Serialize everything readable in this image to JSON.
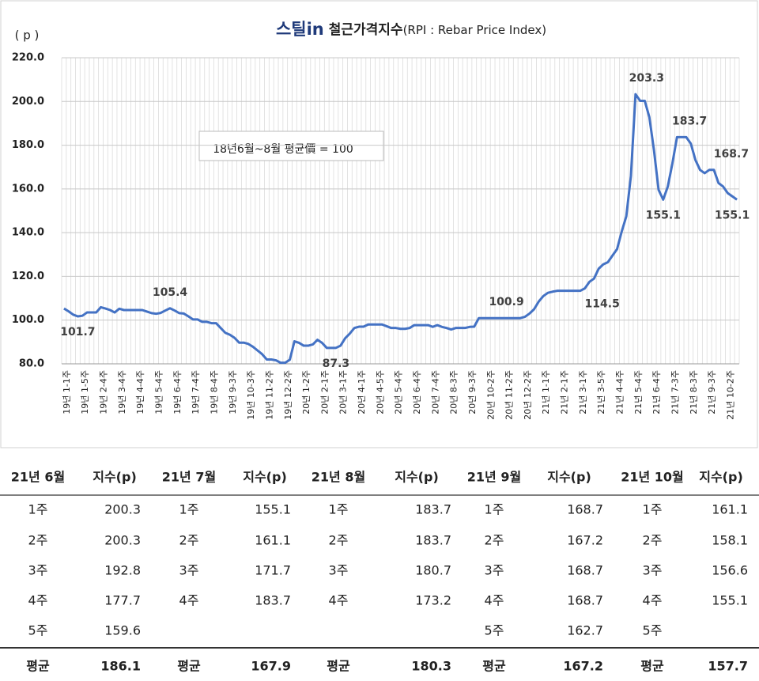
{
  "chart_data": {
    "type": "line",
    "logo": "스틸in",
    "title": "철근가격지수",
    "subtitle": "(RPI : Rebar Price Index)",
    "y_label": "( p )",
    "annotation": "18년6월~8월 평균價 = 100",
    "categories": [
      "19년 1-1주",
      null,
      null,
      null,
      "19년 1-5주",
      null,
      null,
      null,
      "19년 2-4주",
      null,
      null,
      null,
      "19년 3-4주",
      null,
      null,
      null,
      "19년 4-4주",
      null,
      null,
      null,
      "19년 5-4주",
      null,
      null,
      null,
      "19년 6-4주",
      null,
      null,
      null,
      "19년 7-4주",
      null,
      null,
      null,
      "19년 8-4주",
      null,
      null,
      null,
      "19년 9-3주",
      null,
      null,
      null,
      "19년 10-3주",
      null,
      null,
      null,
      "19년 11-2주",
      null,
      null,
      null,
      "19년 12-2주",
      null,
      null,
      null,
      "20년 1-2주",
      null,
      null,
      null,
      "20년 2-1주",
      null,
      null,
      null,
      "20년 3-1주",
      null,
      null,
      null,
      "20년 4-1주",
      null,
      null,
      null,
      "20년 4-5주",
      null,
      null,
      null,
      "20년 5-4주",
      null,
      null,
      null,
      "20년 6-4주",
      null,
      null,
      null,
      "20년 7-4주",
      null,
      null,
      null,
      "20년 8-3주",
      null,
      null,
      null,
      "20년 9-3주",
      null,
      null,
      null,
      "20년 10-2주",
      null,
      null,
      null,
      "20년 11-2주",
      null,
      null,
      null,
      "20년 12-2주",
      null,
      null,
      null,
      "21년 1-1주",
      null,
      null,
      null,
      "21년 2-1주",
      null,
      null,
      null,
      "21년 3-1주",
      null,
      null,
      null,
      "21년 3-5주",
      null,
      null,
      null,
      "21년 4-4주",
      null,
      null,
      null,
      "21년 5-4주",
      null,
      null,
      null,
      "21년 6-4주",
      null,
      null,
      null,
      "21년 7-3주",
      null,
      null,
      null,
      "21년 8-3주",
      null,
      null,
      null,
      "21년 9-3주",
      null,
      null,
      null,
      "21년 10-2주",
      null,
      null
    ],
    "series": [
      {
        "name": "철근가격지수",
        "color": "#4472c4",
        "values": [
          105.3,
          104,
          102.5,
          101.7,
          102,
          103.5,
          103.5,
          103.5,
          105.9,
          105.3,
          104.6,
          103.5,
          105.2,
          104.6,
          104.6,
          104.6,
          104.6,
          104.6,
          103.9,
          103.2,
          102.9,
          103.3,
          104.4,
          105.4,
          104.4,
          103.2,
          103,
          101.7,
          100.3,
          100.3,
          99.2,
          99.2,
          98.6,
          98.6,
          96.4,
          94.2,
          93.3,
          91.9,
          89.7,
          89.7,
          89.1,
          87.8,
          86.1,
          84.4,
          82,
          82,
          81.6,
          80.5,
          80.5,
          81.9,
          90.3,
          89.6,
          88.3,
          88.3,
          88.9,
          91,
          89.6,
          87.3,
          87.3,
          87.3,
          88.3,
          91.7,
          93.8,
          96.4,
          97,
          97,
          98,
          98,
          98,
          98,
          97.2,
          96.4,
          96.4,
          96,
          96,
          96.4,
          97.7,
          97.7,
          97.7,
          97.7,
          96.9,
          97.7,
          96.9,
          96.4,
          95.7,
          96.4,
          96.4,
          96.4,
          96.9,
          97,
          100.9,
          100.9,
          100.9,
          100.9,
          100.9,
          100.9,
          100.9,
          100.9,
          100.9,
          100.9,
          101.5,
          103,
          105,
          108.5,
          111,
          112.5,
          113,
          113.4,
          113.4,
          113.4,
          113.4,
          113.4,
          113.4,
          114.5,
          117.5,
          119,
          123.5,
          125.5,
          126.5,
          129.5,
          132.5,
          140.5,
          147.5,
          166,
          203.3,
          200.3,
          200.3,
          192.8,
          177.7,
          159.6,
          155.1,
          161.1,
          171.7,
          183.7,
          183.7,
          183.7,
          180.7,
          173.2,
          168.7,
          167.2,
          168.7,
          168.7,
          162.7,
          161.1,
          158.1,
          156.6,
          155.1
        ],
        "value_labels": [
          null,
          null,
          null,
          "101.7",
          null,
          null,
          null,
          null,
          null,
          null,
          null,
          null,
          null,
          null,
          null,
          null,
          null,
          null,
          null,
          null,
          null,
          null,
          null,
          "105.4",
          null,
          null,
          null,
          null,
          null,
          null,
          null,
          null,
          null,
          null,
          null,
          null,
          null,
          null,
          null,
          null,
          null,
          null,
          null,
          null,
          null,
          null,
          null,
          null,
          null,
          null,
          null,
          null,
          null,
          null,
          null,
          null,
          null,
          null,
          null,
          "87.3",
          null,
          null,
          null,
          null,
          null,
          null,
          null,
          null,
          null,
          null,
          null,
          null,
          null,
          null,
          null,
          null,
          null,
          null,
          null,
          null,
          null,
          null,
          null,
          null,
          null,
          null,
          null,
          null,
          null,
          null,
          null,
          null,
          null,
          null,
          null,
          null,
          "100.9",
          null,
          null,
          null,
          null,
          null,
          null,
          null,
          null,
          null,
          null,
          null,
          null,
          null,
          null,
          null,
          null,
          "114.5",
          null,
          null,
          null,
          null,
          null,
          null,
          null,
          null,
          null,
          null,
          "203.3",
          null,
          null,
          null,
          null,
          null,
          "155.1",
          null,
          null,
          null,
          "183.7",
          null,
          null,
          null,
          null,
          null,
          null,
          "168.7",
          null,
          null,
          null,
          null,
          "155.1"
        ]
      }
    ],
    "ylim": [
      80,
      220
    ],
    "yticks": [
      {
        "value": 80,
        "label": "80.0"
      },
      {
        "value": 100,
        "label": "100.0"
      },
      {
        "value": 120,
        "label": "120.0"
      },
      {
        "value": 140,
        "label": "140.0"
      },
      {
        "value": 160,
        "label": "160.0"
      },
      {
        "value": 180,
        "label": "180.0"
      },
      {
        "value": 200,
        "label": "200.0"
      },
      {
        "value": 220,
        "label": "220.0"
      }
    ],
    "grid": true
  },
  "table": {
    "header": [
      "21년 6월",
      "지수(p)",
      "21년 7월",
      "지수(p)",
      "21년 8월",
      "지수(p)",
      "21년 9월",
      "지수(p)",
      "21년 10월",
      "지수(p)"
    ],
    "rows": [
      [
        "1주",
        "200.3",
        "1주",
        "155.1",
        "1주",
        "183.7",
        "1주",
        "168.7",
        "1주",
        "161.1"
      ],
      [
        "2주",
        "200.3",
        "2주",
        "161.1",
        "2주",
        "183.7",
        "2주",
        "167.2",
        "2주",
        "158.1"
      ],
      [
        "3주",
        "192.8",
        "3주",
        "171.7",
        "3주",
        "180.7",
        "3주",
        "168.7",
        "3주",
        "156.6"
      ],
      [
        "4주",
        "177.7",
        "4주",
        "183.7",
        "4주",
        "173.2",
        "4주",
        "168.7",
        "4주",
        "155.1"
      ],
      [
        "5주",
        "159.6",
        null,
        null,
        null,
        null,
        "5주",
        "162.7",
        "5주",
        null
      ]
    ],
    "footer": [
      "평균",
      "186.1",
      "평균",
      "167.9",
      "평균",
      "180.3",
      "평균",
      "167.2",
      "평균",
      "157.7"
    ]
  }
}
